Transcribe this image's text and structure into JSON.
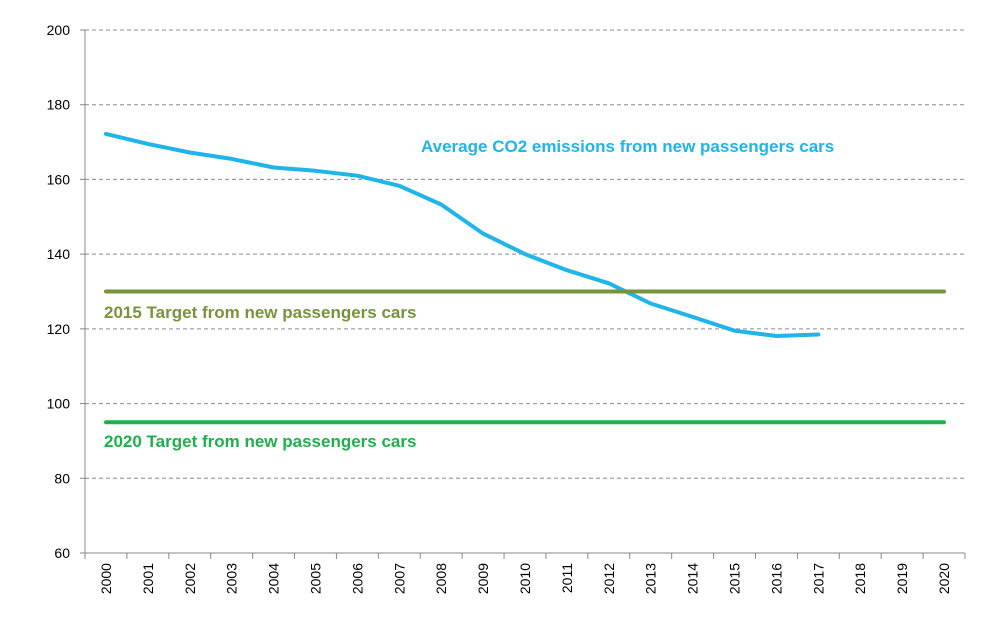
{
  "chart_data": {
    "type": "line",
    "title": "",
    "xlabel": "",
    "ylabel": "",
    "x": [
      "2000",
      "2001",
      "2002",
      "2003",
      "2004",
      "2005",
      "2006",
      "2007",
      "2008",
      "2009",
      "2010",
      "2011",
      "2012",
      "2013",
      "2014",
      "2015",
      "2016",
      "2017",
      "2018",
      "2019",
      "2020"
    ],
    "ylim": [
      60,
      200
    ],
    "y_ticks": [
      60,
      80,
      100,
      120,
      140,
      160,
      180,
      200
    ],
    "grid": true,
    "series": [
      {
        "name": "Average CO2 emissions from new passengers cars",
        "color": "#1fb4ea",
        "values": [
          172.2,
          169.5,
          167.2,
          165.5,
          163.2,
          162.3,
          161.0,
          158.3,
          153.3,
          145.5,
          140.0,
          135.7,
          132.2,
          126.8,
          123.2,
          119.5,
          118.1,
          118.5,
          null,
          null,
          null
        ]
      },
      {
        "name": "2015 Target from new passengers cars",
        "color": "#77933c",
        "values": [
          130,
          130,
          130,
          130,
          130,
          130,
          130,
          130,
          130,
          130,
          130,
          130,
          130,
          130,
          130,
          130,
          130,
          130,
          130,
          130,
          130
        ]
      },
      {
        "name": "2020 Target from new passengers cars",
        "color": "#1eb04b",
        "values": [
          95,
          95,
          95,
          95,
          95,
          95,
          95,
          95,
          95,
          95,
          95,
          95,
          95,
          95,
          95,
          95,
          95,
          95,
          95,
          95,
          95
        ]
      }
    ]
  }
}
